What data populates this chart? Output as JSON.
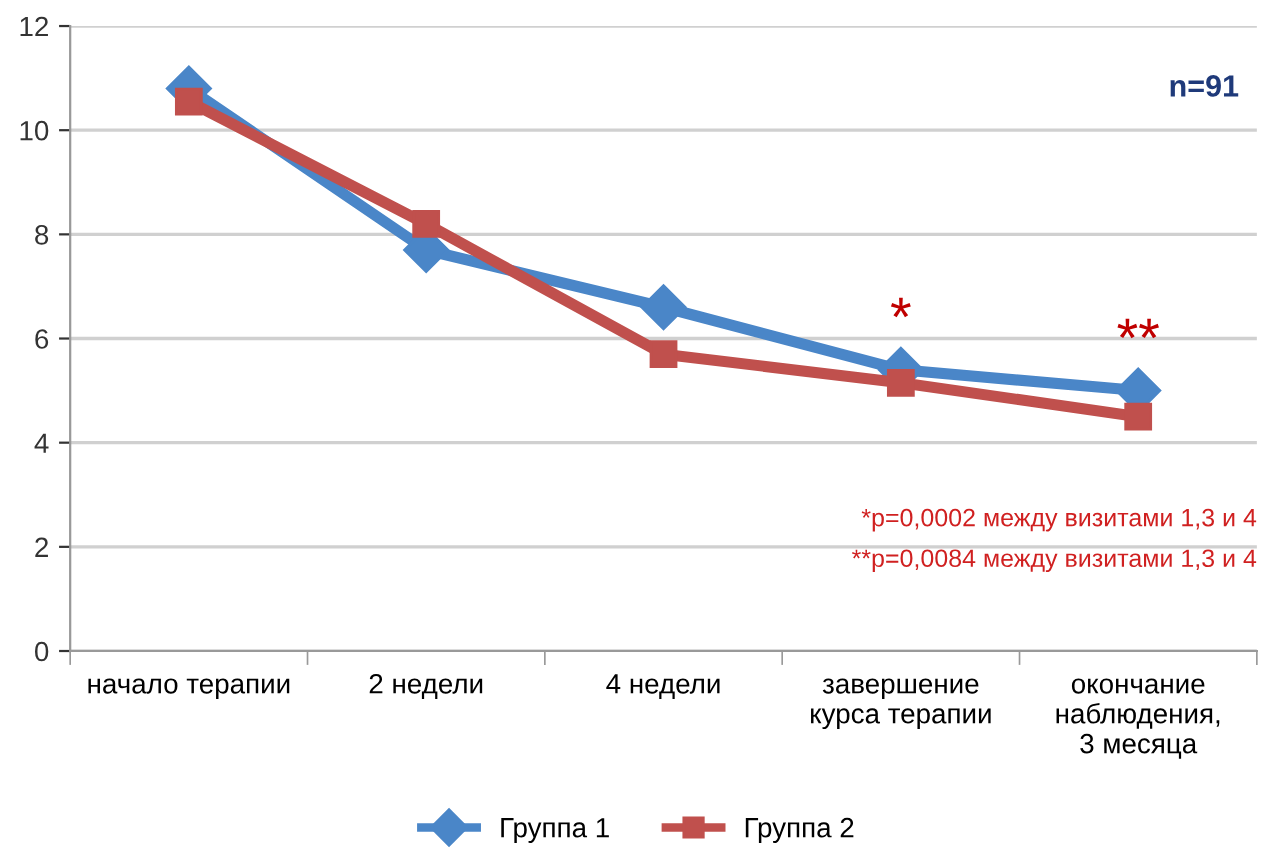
{
  "chart_data": {
    "type": "line",
    "categories": [
      "начало терапии",
      "2 недели",
      "4 недели",
      "завершение\nкурса терапии",
      "окончание\nнаблюдения,\n3 месяца"
    ],
    "series": [
      {
        "name": "Группа 1",
        "color": "#4a86c8",
        "marker": "diamond",
        "values": [
          10.8,
          7.7,
          6.6,
          5.4,
          5.0
        ]
      },
      {
        "name": "Группа 2",
        "color": "#c0504d",
        "marker": "square",
        "values": [
          10.55,
          8.2,
          5.7,
          5.15,
          4.5
        ]
      }
    ],
    "ylim": [
      0,
      12
    ],
    "yticks": [
      0,
      2,
      4,
      6,
      8,
      10,
      12
    ],
    "grid": "y",
    "legend": "bottom",
    "annotations": [
      {
        "text": "*",
        "x": "завершение\nкурса терапии",
        "y": 5.4
      },
      {
        "text": "**",
        "x": "окончание\nнаблюдения,\n3 месяца",
        "y": 5.0
      },
      "n=91",
      "*p=0,0002 между визитами 1,3 и 4",
      "**p=0,0084 между визитами 1,3 и 4"
    ]
  }
}
